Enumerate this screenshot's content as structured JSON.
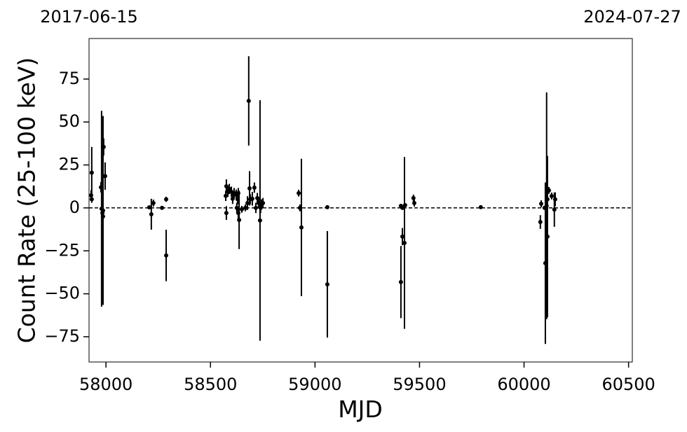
{
  "chart_data": {
    "type": "errorbar-scatter",
    "xlabel": "MJD",
    "ylabel": "Count Rate (25-100 keV)",
    "x": [
      57932,
      57929,
      57932,
      57976,
      57979,
      57983,
      57986,
      57989,
      57996,
      57986,
      58207,
      58217,
      58227,
      58268,
      58288,
      58288,
      58573,
      58576,
      58576,
      58583,
      58590,
      58600,
      58606,
      58613,
      58623,
      58626,
      58630,
      58633,
      58633,
      58637,
      58650,
      58667,
      58677,
      58683,
      58687,
      58690,
      58700,
      58710,
      58717,
      58724,
      58730,
      58737,
      58740,
      58744,
      58751,
      58922,
      58928,
      58935,
      59059,
      59059,
      59411,
      59411,
      59418,
      59418,
      59428,
      59431,
      59471,
      59475,
      59793,
      60078,
      60082,
      60098,
      60102,
      60108,
      60112,
      60112,
      60119,
      60132,
      60145,
      60149
    ],
    "values": [
      20.5,
      7.3,
      5,
      12,
      -0.5,
      -3,
      -1.5,
      35.5,
      18.5,
      -5,
      0.3,
      -3.7,
      2.8,
      0,
      5,
      -27.7,
      7,
      12.6,
      -3,
      9.4,
      11,
      9.4,
      5.3,
      8.6,
      7.7,
      0,
      5,
      8.6,
      -3,
      -7,
      -0.8,
      0,
      2.8,
      62.3,
      11.4,
      5,
      5.3,
      11.8,
      0,
      5.7,
      2.8,
      -7.3,
      0,
      2,
      2.8,
      8.6,
      0,
      -11.4,
      0.4,
      -44.5,
      1.2,
      -43.2,
      0,
      -16.7,
      -20.4,
      1.6,
      5.7,
      2.8,
      0.4,
      -8.2,
      2.4,
      0,
      -32.2,
      1.2,
      5,
      -16.7,
      10.2,
      6.9,
      -1,
      5
    ],
    "errors": [
      15,
      3,
      2,
      3,
      57,
      3,
      55,
      5,
      8,
      3,
      1,
      9,
      2,
      1,
      1.5,
      15,
      3,
      4,
      4,
      3,
      3,
      3,
      3,
      3,
      3,
      3,
      3,
      3,
      4,
      17,
      2,
      2,
      4,
      26,
      10,
      3,
      4,
      3,
      3,
      3,
      3,
      70,
      3,
      3,
      3,
      2,
      2,
      40,
      1,
      31,
      1,
      21,
      1,
      5,
      50,
      1,
      2,
      2,
      1,
      4,
      2,
      1,
      47,
      66,
      2,
      47,
      2,
      2,
      10,
      4
    ],
    "color": "#000000",
    "xlim": [
      57919,
      60518
    ],
    "ylim": [
      -89.7,
      98.6
    ],
    "xticks": [
      58000,
      58500,
      59000,
      59500,
      60000,
      60500
    ],
    "yticks": [
      {
        "value": -75,
        "label": "−75"
      },
      {
        "value": -50,
        "label": "−50"
      },
      {
        "value": -25,
        "label": "−25"
      },
      0,
      25,
      50,
      75
    ],
    "x2ticks": [
      {
        "value": 57919,
        "label": "2017-06-15"
      },
      {
        "value": 60518,
        "label": "2024-07-27"
      }
    ],
    "reference_line": {
      "y": 0,
      "style": "dashed"
    }
  }
}
